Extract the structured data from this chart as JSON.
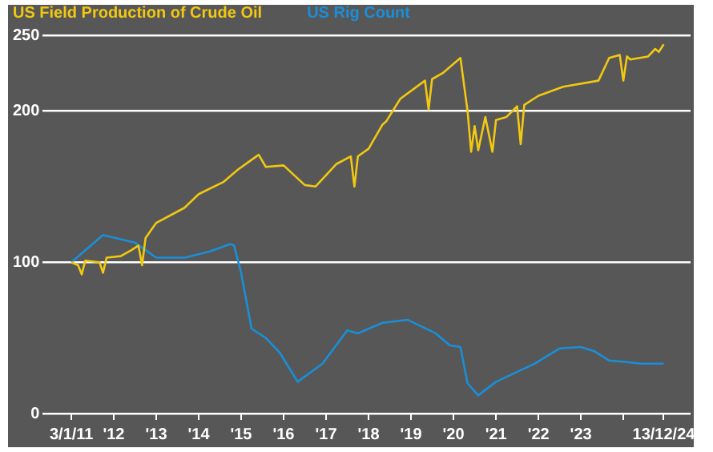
{
  "chart_data": {
    "type": "line",
    "legend": "top left",
    "grid": "y",
    "xlim": [
      "2010-05",
      "2025-08"
    ],
    "ylim": [
      0,
      250
    ],
    "yticks": [
      0,
      100,
      200,
      250
    ],
    "xticks": [
      {
        "value": "2011-01-03",
        "label": "3/1/11"
      },
      {
        "value": "2012-01",
        "label": "'12"
      },
      {
        "value": "2013-01",
        "label": "'13"
      },
      {
        "value": "2014-01",
        "label": "'14"
      },
      {
        "value": "2015-01",
        "label": "'15"
      },
      {
        "value": "2016-01",
        "label": "'16"
      },
      {
        "value": "2017-01",
        "label": "'17"
      },
      {
        "value": "2018-01",
        "label": "'18"
      },
      {
        "value": "2019-01",
        "label": "'19"
      },
      {
        "value": "2020-01",
        "label": "'20"
      },
      {
        "value": "2021-01",
        "label": "'21"
      },
      {
        "value": "2022-01",
        "label": "'22"
      },
      {
        "value": "2023-01",
        "label": "'23"
      },
      {
        "value": "2024-01",
        "label": null
      },
      {
        "value": "2024-12-13",
        "label": "13/12/24"
      }
    ],
    "series": [
      {
        "name": "US Field Production of Crude Oil",
        "color": "#f2c811",
        "x": [
          "2011-01-03",
          "2011-03",
          "2011-04",
          "2011-05",
          "2011-09",
          "2011-10",
          "2011-11",
          "2012-03",
          "2012-06",
          "2012-08",
          "2012-09",
          "2012-10",
          "2013-01",
          "2013-09",
          "2014-01",
          "2014-08",
          "2014-12",
          "2015-03",
          "2015-06",
          "2015-08",
          "2016-01",
          "2016-07",
          "2016-10",
          "2017-04",
          "2017-08",
          "2017-09",
          "2017-10",
          "2018-01",
          "2018-05",
          "2018-06",
          "2018-10",
          "2019-05",
          "2019-06",
          "2019-07",
          "2019-10",
          "2020-03",
          "2020-05",
          "2020-06",
          "2020-07",
          "2020-08",
          "2020-10",
          "2020-12",
          "2021-01",
          "2021-04",
          "2021-07",
          "2021-08",
          "2021-09",
          "2022-01",
          "2022-08",
          "2023-06",
          "2023-09",
          "2023-12",
          "2024-01",
          "2024-02",
          "2024-03",
          "2024-08",
          "2024-10",
          "2024-11",
          "2024-12-13"
        ],
        "values": [
          100,
          98,
          92,
          101,
          100,
          93,
          103,
          104,
          108,
          111,
          98,
          116,
          126,
          136,
          145,
          153,
          161,
          166,
          171,
          163,
          164,
          151,
          150,
          165,
          170,
          150,
          170,
          175,
          191,
          193,
          208,
          220,
          201,
          221,
          225,
          235,
          200,
          173,
          190,
          174,
          196,
          173,
          194,
          196,
          203,
          178,
          204,
          210,
          216,
          220,
          235,
          237,
          220,
          236,
          234,
          236,
          241,
          239,
          244
        ]
      },
      {
        "name": "US Rig Count",
        "color": "#1a8fd8",
        "x": [
          "2011-01-03",
          "2011-10",
          "2012-07",
          "2013-01",
          "2013-09",
          "2014-04",
          "2014-10",
          "2014-11",
          "2015-01",
          "2015-04",
          "2015-08",
          "2015-12",
          "2016-05",
          "2016-12",
          "2017-07",
          "2017-10",
          "2018-05",
          "2018-09",
          "2018-12",
          "2019-08",
          "2019-12",
          "2020-03",
          "2020-05",
          "2020-08",
          "2021-01",
          "2021-12",
          "2022-07",
          "2023-01",
          "2023-05",
          "2023-09",
          "2024-02",
          "2024-06",
          "2024-12-13"
        ],
        "values": [
          100,
          118,
          113,
          103,
          103,
          107,
          112,
          111,
          93,
          56,
          50,
          40,
          21,
          33,
          55,
          53,
          60,
          61,
          62,
          53,
          45,
          44,
          20,
          12,
          21,
          33,
          43,
          44,
          41,
          35,
          34,
          33,
          33
        ]
      }
    ]
  }
}
